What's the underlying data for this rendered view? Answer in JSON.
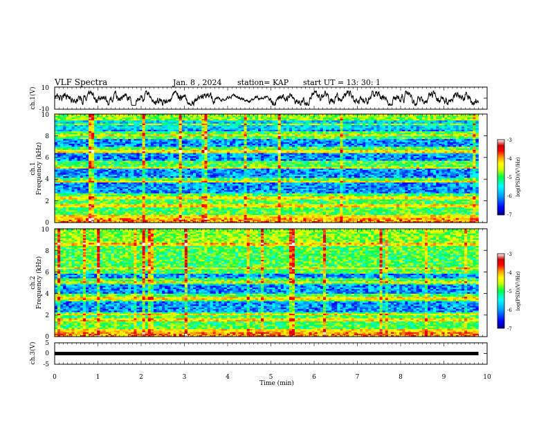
{
  "header": {
    "title": "VLF Spectra",
    "date": "Jan. 8 , 2024",
    "station": "station= KAP",
    "start": "start UT = 13: 30: 1"
  },
  "chart_data": [
    {
      "id": "ch1-waveform",
      "type": "line",
      "ylabel": "ch.1(V)",
      "ylim": [
        -10,
        10
      ],
      "yticks": [
        "10",
        "-10"
      ],
      "xlim": [
        0,
        10
      ],
      "x_end": 9.8,
      "note": "voltage trace oscillating roughly between -6 and 6 V"
    },
    {
      "id": "ch1-spectrogram",
      "type": "heatmap",
      "ylabel_line1": "ch.1",
      "ylabel_line2": "Frequency (kHz)",
      "ylim": [
        0,
        10
      ],
      "yticks": [
        "0",
        "2",
        "4",
        "6",
        "8",
        "10"
      ],
      "xlim": [
        0,
        10
      ],
      "x_end": 9.8,
      "horizontal_lines_khz": [
        0.5,
        1.5,
        2.2,
        3.7,
        5.0,
        6.5,
        8.0,
        9.0
      ],
      "low_power_bands_khz": [
        [
          2.6,
          3.6
        ],
        [
          4.1,
          4.9
        ],
        [
          5.6,
          6.3
        ],
        [
          7.0,
          7.7
        ],
        [
          8.4,
          9.4
        ]
      ],
      "colorbar": {
        "ticks": [
          "-3",
          "-4",
          "-5",
          "-6",
          "-7"
        ],
        "label": "log(PSD)(V²/Hz)",
        "range": [
          -7,
          -3
        ]
      }
    },
    {
      "id": "ch2-spectrogram",
      "type": "heatmap",
      "ylabel_line1": "ch.2",
      "ylabel_line2": "Frequency (kHz)",
      "ylim": [
        0,
        10
      ],
      "yticks": [
        "0",
        "2",
        "4",
        "6",
        "8",
        "10"
      ],
      "xlim": [
        0,
        10
      ],
      "x_end": 9.8,
      "horizontal_lines_khz": [
        0.5,
        1.5,
        2.0,
        3.5,
        5.0,
        6.3,
        8.5
      ],
      "low_power_bands_khz": [
        [
          2.2,
          3.2
        ],
        [
          4.0,
          4.8
        ],
        [
          5.3,
          5.8
        ]
      ],
      "colorbar": {
        "ticks": [
          "-3",
          "-4",
          "-5",
          "-6",
          "-7"
        ],
        "label": "log(PSD)(V²/Hz)",
        "range": [
          -7,
          -3
        ]
      }
    },
    {
      "id": "ch3-waveform",
      "type": "line",
      "ylabel": "ch.3(V)",
      "ylim": [
        -5,
        5
      ],
      "yticks": [
        "5",
        "0",
        "-5"
      ],
      "xlim": [
        0,
        10
      ],
      "x_end": 9.8,
      "level": 0,
      "xlabel": "Time (min)",
      "xticks": [
        "0",
        "1",
        "2",
        "3",
        "4",
        "5",
        "6",
        "7",
        "8",
        "9",
        "10"
      ]
    }
  ],
  "colors": {
    "axes": "#000000",
    "trace": "#000000",
    "colormap": [
      "#00008c",
      "#0000ff",
      "#00a0ff",
      "#00ffff",
      "#00ff50",
      "#c8ff00",
      "#ffff00",
      "#ffa000",
      "#ff0000",
      "#c80000",
      "#ffffff"
    ]
  }
}
